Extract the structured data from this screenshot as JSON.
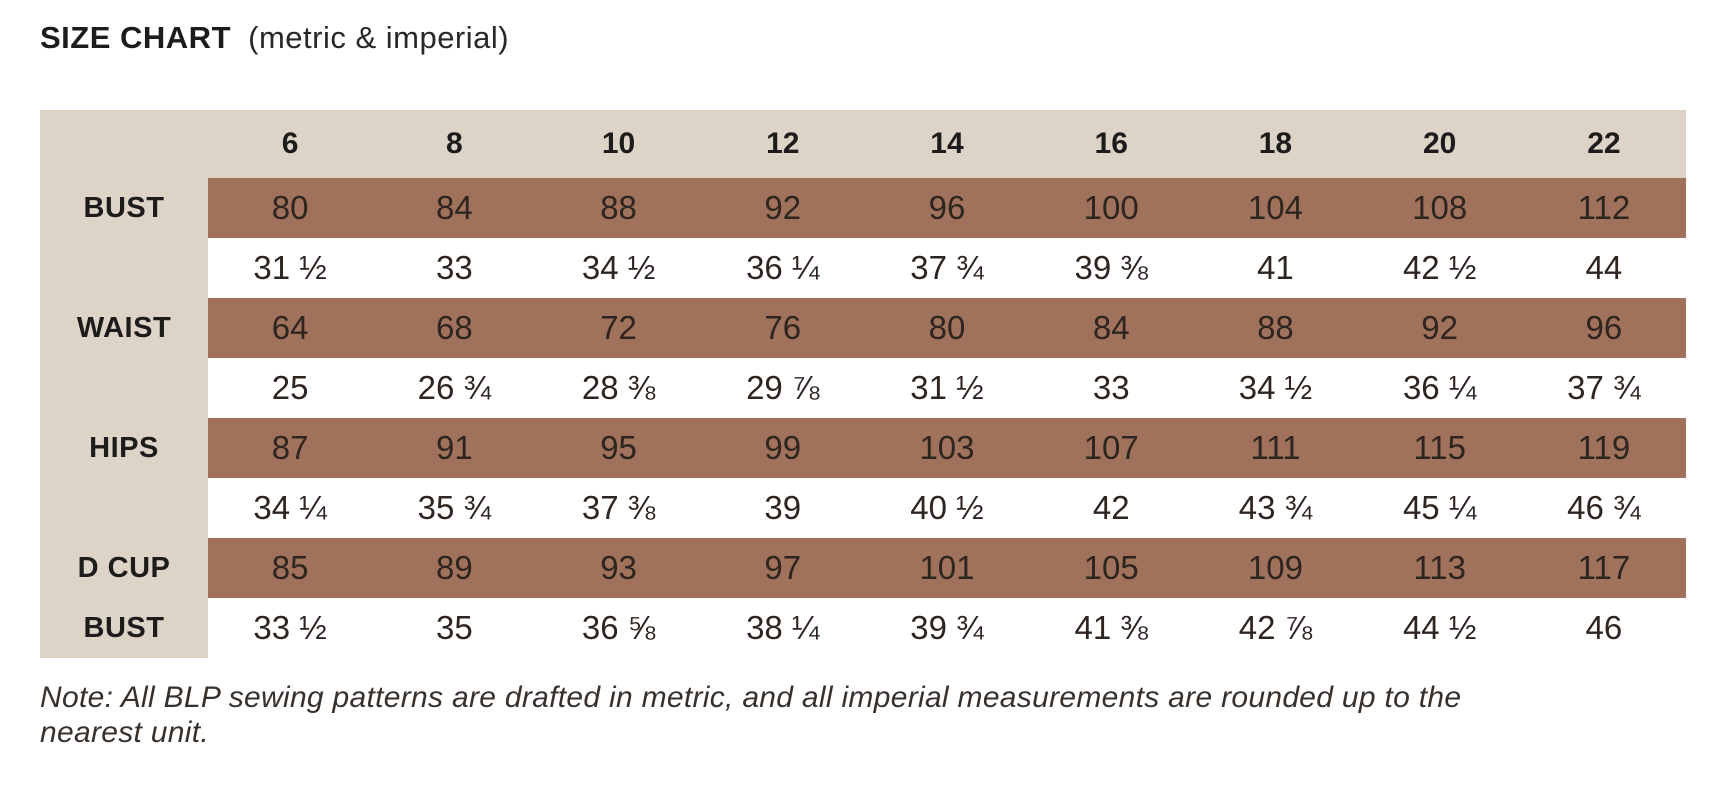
{
  "title": {
    "main": "SIZE CHART",
    "sub": "(metric & imperial)"
  },
  "note": "Note: All BLP sewing patterns are drafted in metric, and all imperial measurements are rounded up to the nearest unit.",
  "colors": {
    "header_beige": "#ddd3c6",
    "metric_row_brown": "#a1725b",
    "imperial_row_white": "#ffffff",
    "text_dark": "#231f20"
  },
  "chart_data": {
    "type": "table",
    "title": "SIZE CHART (metric & imperial)",
    "size_columns": [
      "6",
      "8",
      "10",
      "12",
      "14",
      "16",
      "18",
      "20",
      "22"
    ],
    "rows": [
      {
        "label": "BUST",
        "label_line2": "",
        "metric": [
          80,
          84,
          88,
          92,
          96,
          100,
          104,
          108,
          112
        ],
        "imperial": [
          "31 ½",
          "33",
          "34 ½",
          "36 ¼",
          "37 ¾",
          "39 ⅜",
          "41",
          "42 ½",
          "44"
        ]
      },
      {
        "label": "WAIST",
        "label_line2": "",
        "metric": [
          64,
          68,
          72,
          76,
          80,
          84,
          88,
          92,
          96
        ],
        "imperial": [
          "25",
          "26 ¾",
          "28 ⅜",
          "29 ⅞",
          "31 ½",
          "33",
          "34 ½",
          "36 ¼",
          "37 ¾"
        ]
      },
      {
        "label": "HIPS",
        "label_line2": "",
        "metric": [
          87,
          91,
          95,
          99,
          103,
          107,
          111,
          115,
          119
        ],
        "imperial": [
          "34 ¼",
          "35 ¾",
          "37 ⅜",
          "39",
          "40 ½",
          "42",
          "43 ¾",
          "45 ¼",
          "46 ¾"
        ]
      },
      {
        "label": "D CUP",
        "label_line2": "BUST",
        "metric": [
          85,
          89,
          93,
          97,
          101,
          105,
          109,
          113,
          117
        ],
        "imperial": [
          "33 ½",
          "35",
          "36 ⅝",
          "38 ¼",
          "39 ¾",
          "41 ⅜",
          "42 ⅞",
          "44 ½",
          "46"
        ]
      }
    ]
  }
}
